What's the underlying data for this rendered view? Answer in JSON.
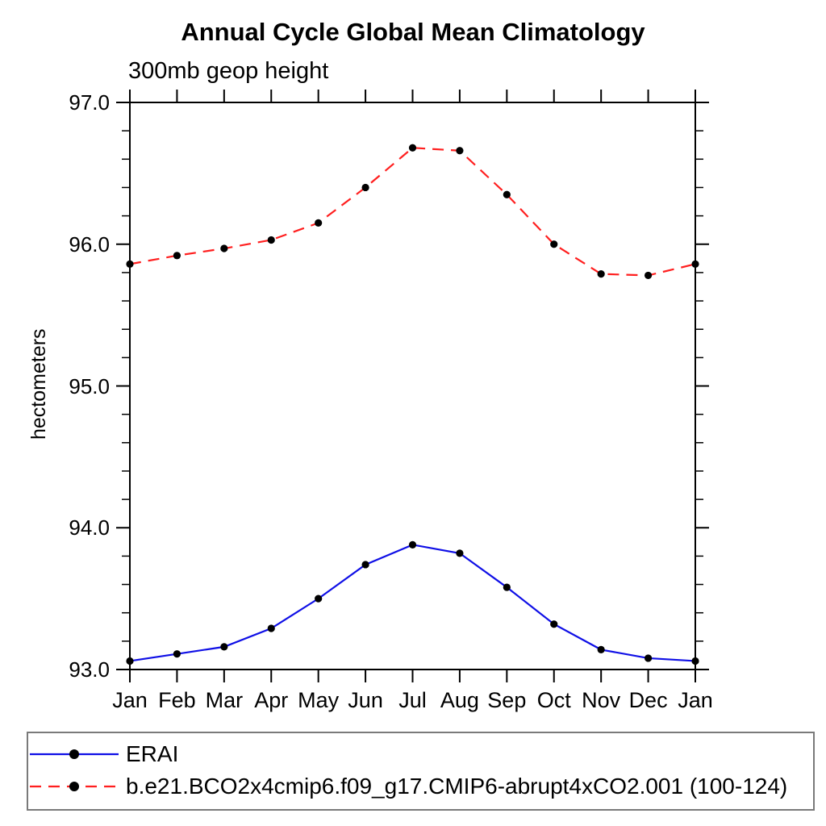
{
  "title": "Annual Cycle Global Mean Climatology",
  "subtitle": "300mb geop height",
  "ylabel": "hectometers",
  "colors": {
    "erai_line": "#0f0fe6",
    "model_line": "#ff1f1f",
    "marker": "#000000",
    "axis": "#000000",
    "legend_border": "#7a7a7a",
    "background": "#ffffff"
  },
  "legend": {
    "items": [
      {
        "label": "ERAI",
        "line_style": "solid",
        "line_color": "#0f0fe6",
        "marker": "black-dot"
      },
      {
        "label": "b.e21.BCO2x4cmip6.f09_g17.CMIP6-abrupt4xCO2.001 (100-124)",
        "line_style": "dashed",
        "line_color": "#ff1f1f",
        "marker": "black-dot"
      }
    ]
  },
  "chart_data": {
    "type": "line",
    "title": "Annual Cycle Global Mean Climatology",
    "subtitle": "300mb geop height",
    "xlabel": "",
    "ylabel": "hectometers",
    "categories": [
      "Jan",
      "Feb",
      "Mar",
      "Apr",
      "May",
      "Jun",
      "Jul",
      "Aug",
      "Sep",
      "Oct",
      "Nov",
      "Dec",
      "Jan"
    ],
    "series": [
      {
        "name": "ERAI",
        "color": "#0f0fe6",
        "style": "solid",
        "marker": "circle",
        "values": [
          93.06,
          93.11,
          93.16,
          93.29,
          93.5,
          93.74,
          93.88,
          93.82,
          93.58,
          93.32,
          93.14,
          93.08,
          93.06
        ]
      },
      {
        "name": "b.e21.BCO2x4cmip6.f09_g17.CMIP6-abrupt4xCO2.001 (100-124)",
        "color": "#ff1f1f",
        "style": "dashed",
        "marker": "circle",
        "values": [
          95.86,
          95.92,
          95.97,
          96.03,
          96.15,
          96.4,
          96.68,
          96.66,
          96.35,
          96.0,
          95.79,
          95.78,
          95.86
        ]
      }
    ],
    "ylim": [
      93.0,
      97.0
    ],
    "yticks": [
      93.0,
      94.0,
      95.0,
      96.0,
      97.0
    ],
    "ytick_labels": [
      "93.0",
      "94.0",
      "95.0",
      "96.0",
      "97.0"
    ],
    "y_minor_interval": 0.2,
    "grid": false,
    "legend_position": "bottom"
  }
}
